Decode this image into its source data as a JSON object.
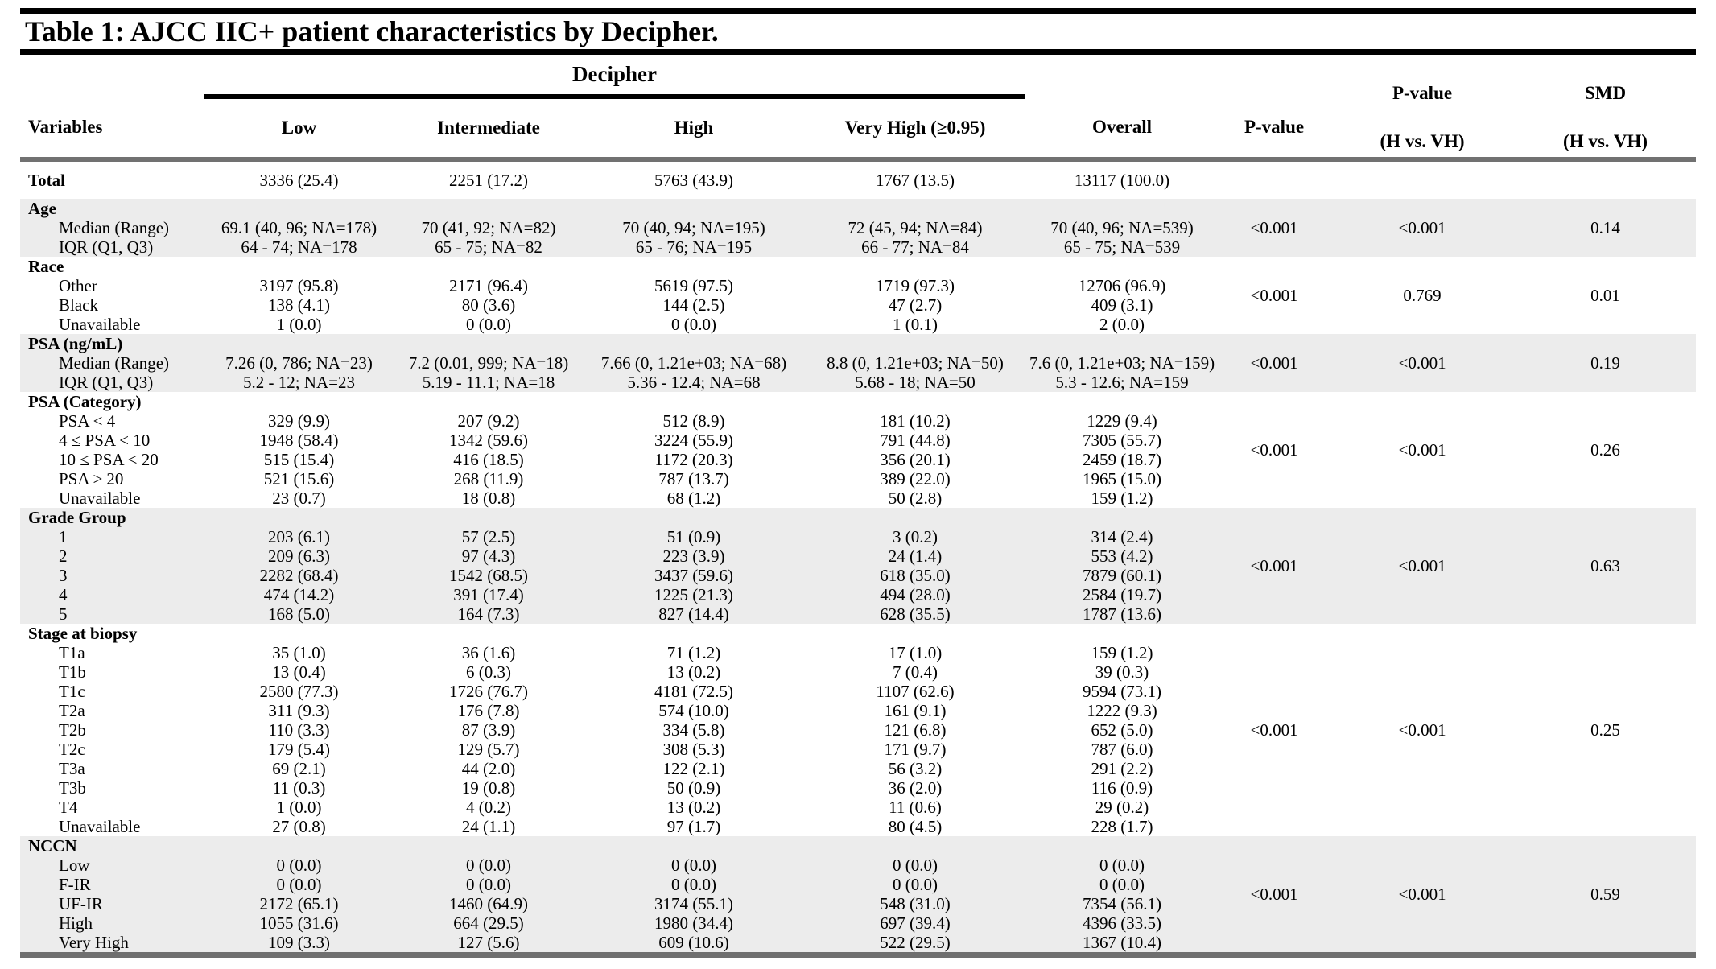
{
  "title": "Table 1: AJCC IIC+ patient characteristics by Decipher.",
  "header": {
    "group": "Decipher",
    "col_variables": "Variables",
    "col_low": "Low",
    "col_intermediate": "Intermediate",
    "col_high": "High",
    "col_very_high": "Very High (≥0.95)",
    "col_overall": "Overall",
    "col_pvalue": "P-value",
    "col_pvalue_hvh_line1": "P-value",
    "col_pvalue_hvh_line2": "(H vs. VH)",
    "col_smd_line1": "SMD",
    "col_smd_line2": "(H vs. VH)"
  },
  "colors": {
    "shaded_row": "#ececec",
    "rule_gray": "#717171",
    "rule_black": "#000000"
  },
  "total_row": {
    "label": "Total",
    "values": [
      "3336 (25.4)",
      "2251 (17.2)",
      "5763 (43.9)",
      "1767 (13.5)",
      "13117 (100.0)"
    ]
  },
  "sections": [
    {
      "name": "Age",
      "shaded": true,
      "pvalue": "<0.001",
      "pvalue_hvh": "<0.001",
      "smd": "0.14",
      "rows": [
        {
          "label": "Median (Range)",
          "values": [
            "69.1 (40, 96; NA=178)",
            "70 (41, 92; NA=82)",
            "70 (40, 94; NA=195)",
            "72 (45, 94; NA=84)",
            "70 (40, 96; NA=539)"
          ]
        },
        {
          "label": "IQR (Q1, Q3)",
          "values": [
            "64 - 74; NA=178",
            "65 - 75; NA=82",
            "65 - 76; NA=195",
            "66 - 77; NA=84",
            "65 - 75; NA=539"
          ]
        }
      ]
    },
    {
      "name": "Race",
      "shaded": false,
      "pvalue": "<0.001",
      "pvalue_hvh": "0.769",
      "smd": "0.01",
      "rows": [
        {
          "label": "Other",
          "values": [
            "3197 (95.8)",
            "2171 (96.4)",
            "5619 (97.5)",
            "1719 (97.3)",
            "12706 (96.9)"
          ]
        },
        {
          "label": "Black",
          "values": [
            "138 (4.1)",
            "80 (3.6)",
            "144 (2.5)",
            "47 (2.7)",
            "409 (3.1)"
          ]
        },
        {
          "label": "Unavailable",
          "values": [
            "1 (0.0)",
            "0 (0.0)",
            "0 (0.0)",
            "1 (0.1)",
            "2 (0.0)"
          ]
        }
      ]
    },
    {
      "name": "PSA (ng/mL)",
      "shaded": true,
      "pvalue": "<0.001",
      "pvalue_hvh": "<0.001",
      "smd": "0.19",
      "rows": [
        {
          "label": "Median (Range)",
          "values": [
            "7.26 (0, 786; NA=23)",
            "7.2 (0.01, 999; NA=18)",
            "7.66 (0, 1.21e+03; NA=68)",
            "8.8 (0, 1.21e+03; NA=50)",
            "7.6 (0, 1.21e+03; NA=159)"
          ]
        },
        {
          "label": "IQR (Q1, Q3)",
          "values": [
            "5.2 - 12; NA=23",
            "5.19 - 11.1; NA=18",
            "5.36 - 12.4; NA=68",
            "5.68 - 18; NA=50",
            "5.3 - 12.6; NA=159"
          ]
        }
      ]
    },
    {
      "name": "PSA (Category)",
      "shaded": false,
      "pvalue": "<0.001",
      "pvalue_hvh": "<0.001",
      "smd": "0.26",
      "rows": [
        {
          "label": "PSA < 4",
          "values": [
            "329 (9.9)",
            "207 (9.2)",
            "512 (8.9)",
            "181 (10.2)",
            "1229 (9.4)"
          ]
        },
        {
          "label": "4 ≤ PSA < 10",
          "values": [
            "1948 (58.4)",
            "1342 (59.6)",
            "3224 (55.9)",
            "791 (44.8)",
            "7305 (55.7)"
          ]
        },
        {
          "label": "10 ≤ PSA < 20",
          "values": [
            "515 (15.4)",
            "416 (18.5)",
            "1172 (20.3)",
            "356 (20.1)",
            "2459 (18.7)"
          ]
        },
        {
          "label": "PSA ≥ 20",
          "values": [
            "521 (15.6)",
            "268 (11.9)",
            "787 (13.7)",
            "389 (22.0)",
            "1965 (15.0)"
          ]
        },
        {
          "label": "Unavailable",
          "values": [
            "23 (0.7)",
            "18 (0.8)",
            "68 (1.2)",
            "50 (2.8)",
            "159 (1.2)"
          ]
        }
      ]
    },
    {
      "name": "Grade Group",
      "shaded": true,
      "pvalue": "<0.001",
      "pvalue_hvh": "<0.001",
      "smd": "0.63",
      "rows": [
        {
          "label": "1",
          "values": [
            "203 (6.1)",
            "57 (2.5)",
            "51 (0.9)",
            "3 (0.2)",
            "314 (2.4)"
          ]
        },
        {
          "label": "2",
          "values": [
            "209 (6.3)",
            "97 (4.3)",
            "223 (3.9)",
            "24 (1.4)",
            "553 (4.2)"
          ]
        },
        {
          "label": "3",
          "values": [
            "2282 (68.4)",
            "1542 (68.5)",
            "3437 (59.6)",
            "618 (35.0)",
            "7879 (60.1)"
          ]
        },
        {
          "label": "4",
          "values": [
            "474 (14.2)",
            "391 (17.4)",
            "1225 (21.3)",
            "494 (28.0)",
            "2584 (19.7)"
          ]
        },
        {
          "label": "5",
          "values": [
            "168 (5.0)",
            "164 (7.3)",
            "827 (14.4)",
            "628 (35.5)",
            "1787 (13.6)"
          ]
        }
      ]
    },
    {
      "name": "Stage at biopsy",
      "shaded": false,
      "pvalue": "<0.001",
      "pvalue_hvh": "<0.001",
      "smd": "0.25",
      "rows": [
        {
          "label": "T1a",
          "values": [
            "35 (1.0)",
            "36 (1.6)",
            "71 (1.2)",
            "17 (1.0)",
            "159 (1.2)"
          ]
        },
        {
          "label": "T1b",
          "values": [
            "13 (0.4)",
            "6 (0.3)",
            "13 (0.2)",
            "7 (0.4)",
            "39 (0.3)"
          ]
        },
        {
          "label": "T1c",
          "values": [
            "2580 (77.3)",
            "1726 (76.7)",
            "4181 (72.5)",
            "1107 (62.6)",
            "9594 (73.1)"
          ]
        },
        {
          "label": "T2a",
          "values": [
            "311 (9.3)",
            "176 (7.8)",
            "574 (10.0)",
            "161 (9.1)",
            "1222 (9.3)"
          ]
        },
        {
          "label": "T2b",
          "values": [
            "110 (3.3)",
            "87 (3.9)",
            "334 (5.8)",
            "121 (6.8)",
            "652 (5.0)"
          ]
        },
        {
          "label": "T2c",
          "values": [
            "179 (5.4)",
            "129 (5.7)",
            "308 (5.3)",
            "171 (9.7)",
            "787 (6.0)"
          ]
        },
        {
          "label": "T3a",
          "values": [
            "69 (2.1)",
            "44 (2.0)",
            "122 (2.1)",
            "56 (3.2)",
            "291 (2.2)"
          ]
        },
        {
          "label": "T3b",
          "values": [
            "11 (0.3)",
            "19 (0.8)",
            "50 (0.9)",
            "36 (2.0)",
            "116 (0.9)"
          ]
        },
        {
          "label": "T4",
          "values": [
            "1 (0.0)",
            "4 (0.2)",
            "13 (0.2)",
            "11 (0.6)",
            "29 (0.2)"
          ]
        },
        {
          "label": "Unavailable",
          "values": [
            "27 (0.8)",
            "24 (1.1)",
            "97 (1.7)",
            "80 (4.5)",
            "228 (1.7)"
          ]
        }
      ]
    },
    {
      "name": "NCCN",
      "shaded": true,
      "pvalue": "<0.001",
      "pvalue_hvh": "<0.001",
      "smd": "0.59",
      "rows": [
        {
          "label": "Low",
          "values": [
            "0 (0.0)",
            "0 (0.0)",
            "0 (0.0)",
            "0 (0.0)",
            "0 (0.0)"
          ]
        },
        {
          "label": "F-IR",
          "values": [
            "0 (0.0)",
            "0 (0.0)",
            "0 (0.0)",
            "0 (0.0)",
            "0 (0.0)"
          ]
        },
        {
          "label": "UF-IR",
          "values": [
            "2172 (65.1)",
            "1460 (64.9)",
            "3174 (55.1)",
            "548 (31.0)",
            "7354 (56.1)"
          ]
        },
        {
          "label": "High",
          "values": [
            "1055 (31.6)",
            "664 (29.5)",
            "1980 (34.4)",
            "697 (39.4)",
            "4396 (33.5)"
          ]
        },
        {
          "label": "Very High",
          "values": [
            "109 (3.3)",
            "127 (5.6)",
            "609 (10.6)",
            "522 (29.5)",
            "1367 (10.4)"
          ]
        }
      ]
    }
  ]
}
